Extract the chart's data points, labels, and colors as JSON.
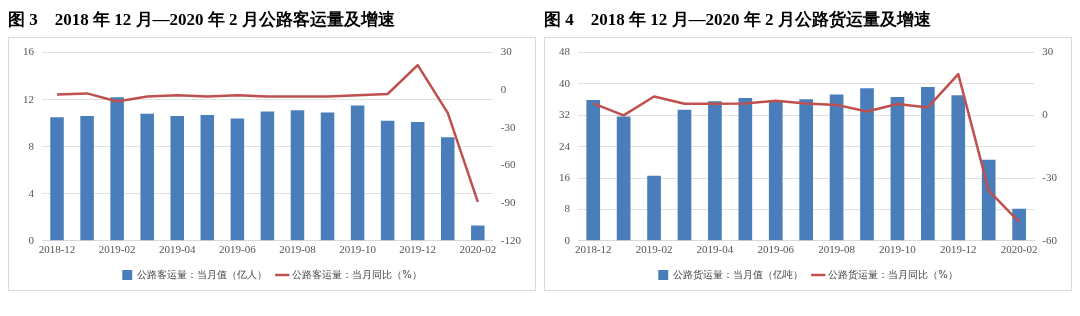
{
  "chart_data": [
    {
      "type": "bar",
      "title": "图 3　2018 年 12 月—2020 年 2 月公路客运量及增速",
      "categories": [
        "2018-12",
        null,
        "2019-02",
        null,
        "2019-04",
        null,
        "2019-06",
        null,
        "2019-08",
        null,
        "2019-10",
        null,
        "2019-12",
        null,
        "2020-02"
      ],
      "series": [
        {
          "name": "公路客运量：当月值（亿人）",
          "color": "#4a7ebb",
          "values": [
            10.5,
            10.6,
            12.2,
            10.8,
            10.6,
            10.7,
            10.4,
            11.0,
            11.1,
            10.9,
            11.5,
            10.2,
            10.1,
            8.8,
            1.3
          ]
        },
        {
          "name": "公路客运量：当月同比（%）",
          "type": "line",
          "axis": "y2",
          "color": "#c0504d",
          "values": [
            -3.4,
            -2.5,
            -9,
            -5,
            -4,
            -5,
            -4,
            -5,
            -5,
            -5,
            -4,
            -3,
            20,
            -18,
            -89
          ]
        }
      ],
      "ylim": [
        0,
        16
      ],
      "yticks": [
        0,
        4,
        8,
        12,
        16
      ],
      "y2lim": [
        -120,
        30
      ],
      "y2ticks": [
        -120,
        -90,
        -60,
        -30,
        0,
        30
      ],
      "grid": "y",
      "legend": "bottom",
      "marker": "none"
    },
    {
      "type": "bar",
      "title": "图 4　2018 年 12 月—2020 年 2 月公路货运量及增速",
      "categories": [
        "2018-12",
        null,
        "2019-02",
        null,
        "2019-04",
        null,
        "2019-06",
        null,
        "2019-08",
        null,
        "2019-10",
        null,
        "2019-12",
        null,
        "2020-02"
      ],
      "series": [
        {
          "name": "公路货运量：当月值（亿吨）",
          "color": "#4a7ebb",
          "values": [
            35.9,
            31.7,
            16.6,
            33.4,
            35.6,
            36.4,
            35.8,
            36.1,
            37.3,
            38.9,
            36.7,
            39.2,
            37.1,
            20.7,
            8.2
          ]
        },
        {
          "name": "公路货运量：当月同比（%）",
          "type": "line",
          "axis": "y2",
          "color": "#c0504d",
          "values": [
            5.7,
            0,
            9,
            5.5,
            5.5,
            5.7,
            7,
            5.7,
            5,
            1.8,
            5.4,
            3.8,
            19.7,
            -36,
            -51
          ]
        }
      ],
      "ylim": [
        0,
        48
      ],
      "yticks": [
        0,
        8,
        16,
        24,
        32,
        40,
        48
      ],
      "y2lim": [
        -60,
        30
      ],
      "y2ticks": [
        -60,
        -30,
        0,
        30
      ],
      "grid": "y",
      "legend": "bottom",
      "marker": "none"
    }
  ]
}
